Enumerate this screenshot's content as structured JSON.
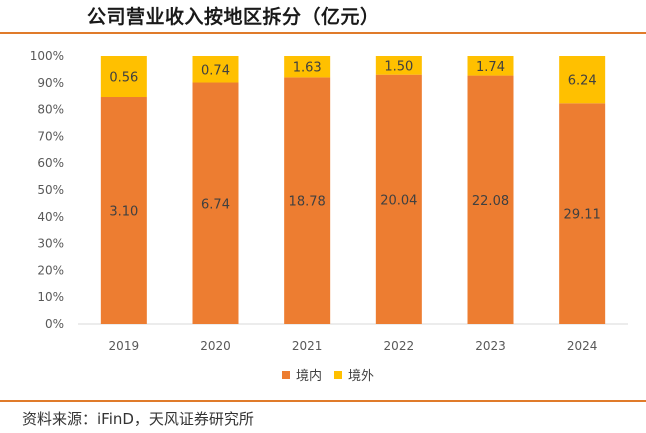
{
  "title": "公司营业收入按地区拆分（亿元）",
  "source": "资料来源：iFinD，天风证券研究所",
  "colors": {
    "domestic": "#ed7d31",
    "overseas": "#ffc000",
    "rule": "#e07b2a"
  },
  "chart_data": {
    "type": "bar",
    "stacked": "percent",
    "title": "公司营业收入按地区拆分（亿元）",
    "categories": [
      "2019",
      "2020",
      "2021",
      "2022",
      "2023",
      "2024"
    ],
    "series": [
      {
        "name": "境内",
        "values": [
          3.1,
          6.74,
          18.78,
          20.04,
          22.08,
          29.11
        ],
        "labels": [
          "3.10",
          "6.74",
          "18.78",
          "20.04",
          "22.08",
          "29.11"
        ]
      },
      {
        "name": "境外",
        "values": [
          0.56,
          0.74,
          1.63,
          1.5,
          1.74,
          6.24
        ],
        "labels": [
          "0.56",
          "0.74",
          "1.63",
          "1.50",
          "1.74",
          "6.24"
        ]
      }
    ],
    "yticks": [
      "0%",
      "10%",
      "20%",
      "30%",
      "40%",
      "50%",
      "60%",
      "70%",
      "80%",
      "90%",
      "100%"
    ],
    "ylim": [
      0,
      100
    ],
    "grid": false,
    "legend_position": "bottom"
  }
}
